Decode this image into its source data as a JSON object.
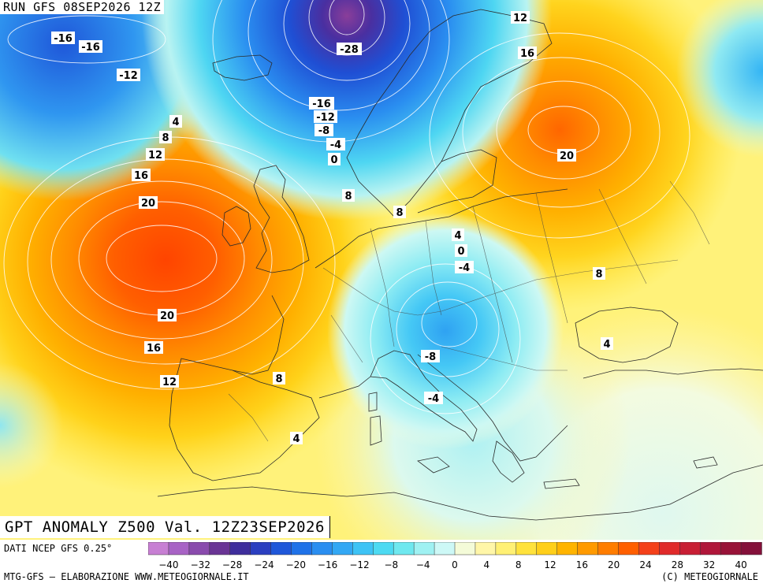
{
  "run_title": "RUN GFS 08SEP2026 12Z",
  "main_title": "GPT ANOMALY Z500 Val. 12Z23SEP2026",
  "source": "DATI NCEP GFS 0.25°",
  "credit_left": "MTG-GFS — ELABORAZIONE WWW.METEOGIORNALE.IT",
  "credit_right": "(C) METEOGIORNALE",
  "colorbar": {
    "min": -40,
    "max": 40,
    "step": 4,
    "tick_labels": [
      "-40",
      "-32",
      "-28",
      "-24",
      "-20",
      "-16",
      "-12",
      "-8",
      "-4",
      "0",
      "4",
      "8",
      "12",
      "16",
      "20",
      "24",
      "28",
      "32",
      "40"
    ],
    "colors": [
      "#c77fd3",
      "#a863c5",
      "#8a4bad",
      "#6a3595",
      "#3f2e9c",
      "#2b3fc0",
      "#1f57d9",
      "#1f72e8",
      "#2a8ef0",
      "#33a8f4",
      "#3ec3f5",
      "#4ddaf2",
      "#6fe8ef",
      "#9ff1f2",
      "#cdf8f6",
      "#f4fbd8",
      "#fff6a8",
      "#fff074",
      "#ffe23c",
      "#ffcf1a",
      "#ffb400",
      "#ff9a00",
      "#ff7d00",
      "#ff5f00",
      "#f4401a",
      "#e02a2a",
      "#c81e34",
      "#b0163a",
      "#981238",
      "#84103a"
    ]
  },
  "contour_labels": [
    {
      "id": "c1",
      "text": "-16"
    },
    {
      "id": "c2",
      "text": "-16"
    },
    {
      "id": "c3",
      "text": "-12"
    },
    {
      "id": "c4",
      "text": "-28"
    },
    {
      "id": "c5",
      "text": "-16"
    },
    {
      "id": "c6",
      "text": "-12"
    },
    {
      "id": "c7",
      "text": "-8"
    },
    {
      "id": "c8",
      "text": "-4"
    },
    {
      "id": "c9",
      "text": "0"
    },
    {
      "id": "c10",
      "text": "4"
    },
    {
      "id": "c11",
      "text": "8"
    },
    {
      "id": "c12",
      "text": "12"
    },
    {
      "id": "c13",
      "text": "16"
    },
    {
      "id": "c14",
      "text": "20"
    },
    {
      "id": "c15",
      "text": "20"
    },
    {
      "id": "c16",
      "text": "16"
    },
    {
      "id": "c17",
      "text": "12"
    },
    {
      "id": "c18",
      "text": "8"
    },
    {
      "id": "c19",
      "text": "8"
    },
    {
      "id": "c20",
      "text": "8"
    },
    {
      "id": "c21",
      "text": "4"
    },
    {
      "id": "c22",
      "text": "0"
    },
    {
      "id": "c23",
      "text": "-4"
    },
    {
      "id": "c24",
      "text": "-8"
    },
    {
      "id": "c25",
      "text": "-4"
    },
    {
      "id": "c26",
      "text": "4"
    },
    {
      "id": "c27",
      "text": "12"
    },
    {
      "id": "c28",
      "text": "16"
    },
    {
      "id": "c29",
      "text": "20"
    },
    {
      "id": "c30",
      "text": "8"
    },
    {
      "id": "c31",
      "text": "4"
    }
  ]
}
